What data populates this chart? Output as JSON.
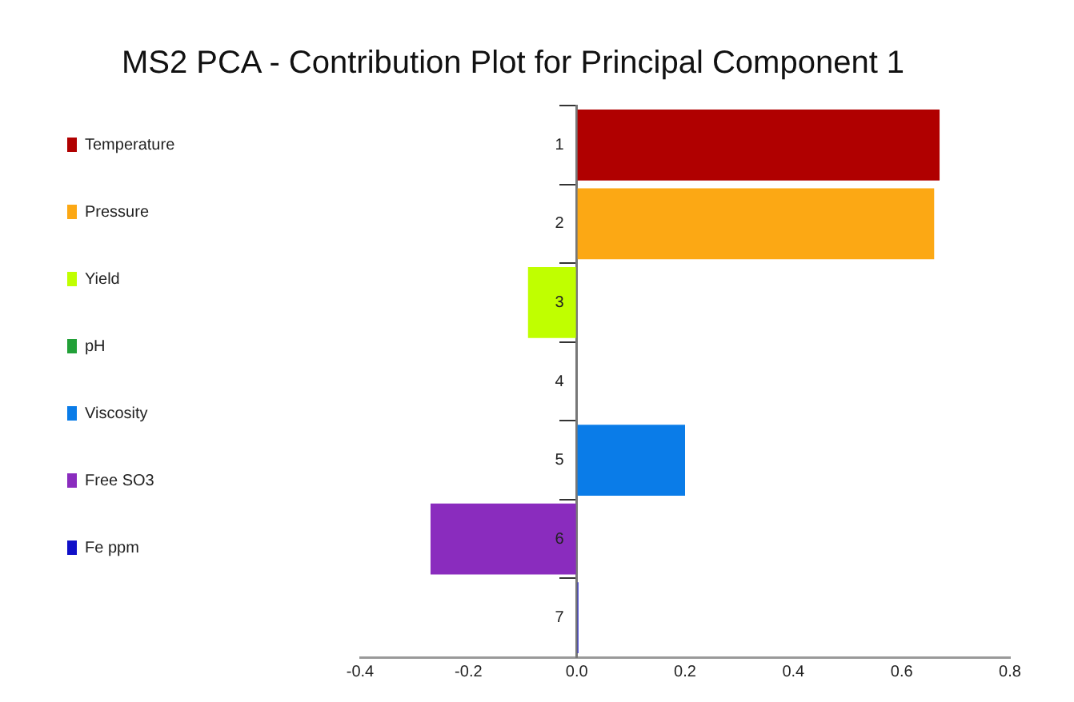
{
  "chart_data": {
    "type": "bar",
    "orientation": "horizontal",
    "title": "MS2 PCA - Contribution Plot for Principal Component 1",
    "categories": [
      "1",
      "2",
      "3",
      "4",
      "5",
      "6",
      "7"
    ],
    "series": [
      {
        "name": "Temperature",
        "color": "#b00000",
        "values": [
          0.67,
          null,
          null,
          null,
          null,
          null,
          null
        ]
      },
      {
        "name": "Pressure",
        "color": "#fca814",
        "values": [
          null,
          0.66,
          null,
          null,
          null,
          null,
          null
        ]
      },
      {
        "name": "Yield",
        "color": "#c0ff00",
        "values": [
          null,
          null,
          -0.09,
          null,
          null,
          null,
          null
        ]
      },
      {
        "name": "pH",
        "color": "#22a038",
        "values": [
          null,
          null,
          null,
          0,
          null,
          null,
          null
        ]
      },
      {
        "name": "Viscosity",
        "color": "#0a7ce8",
        "values": [
          null,
          null,
          null,
          null,
          0.2,
          null,
          null
        ]
      },
      {
        "name": "Free SO3",
        "color": "#8a2cbe",
        "values": [
          null,
          null,
          null,
          null,
          null,
          -0.27,
          null
        ]
      },
      {
        "name": "Fe ppm",
        "color": "#1010c8",
        "values": [
          null,
          null,
          null,
          null,
          null,
          null,
          0.003
        ]
      }
    ],
    "xlim": [
      -0.4,
      0.8
    ],
    "xticks": [
      {
        "value": -0.4,
        "label": "-0.4"
      },
      {
        "value": -0.2,
        "label": "-0.2"
      },
      {
        "value": 0,
        "label": "0.0"
      },
      {
        "value": 0.2,
        "label": "0.2"
      },
      {
        "value": 0.4,
        "label": "0.4"
      },
      {
        "value": 0.6,
        "label": "0.6"
      },
      {
        "value": 0.8,
        "label": "0.8"
      }
    ],
    "grid": false,
    "legend": "left"
  }
}
